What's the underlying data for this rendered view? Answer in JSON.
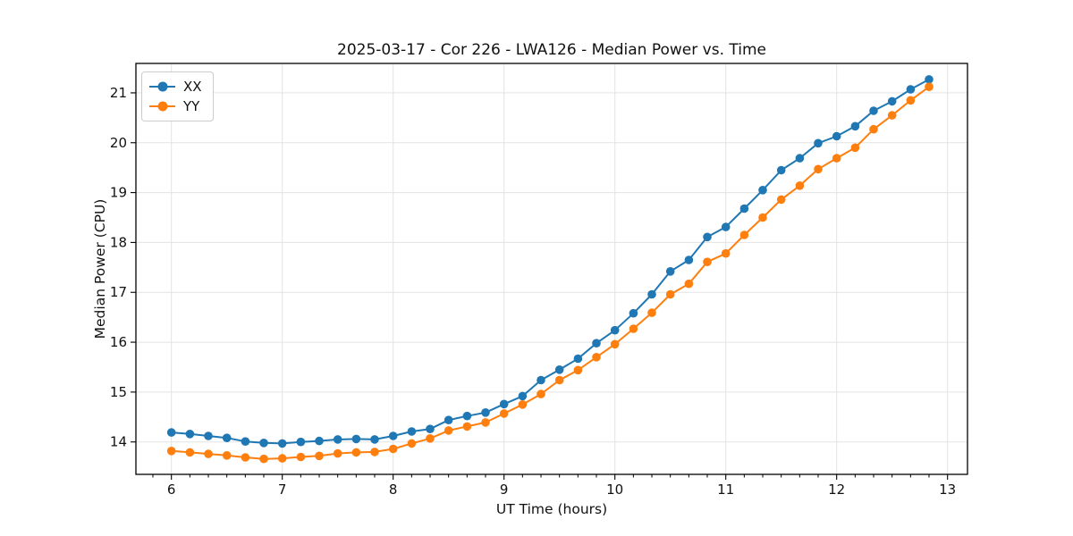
{
  "chart_data": {
    "type": "line",
    "title": "2025-03-17 - Cor 226 - LWA126 - Median Power vs. Time",
    "xlabel": "UT Time (hours)",
    "ylabel": "Median Power (CPU)",
    "xlim": [
      5.68,
      13.18
    ],
    "ylim": [
      13.35,
      21.59
    ],
    "xticks": [
      6,
      7,
      8,
      9,
      10,
      11,
      12,
      13
    ],
    "yticks": [
      14,
      15,
      16,
      17,
      18,
      19,
      20,
      21
    ],
    "x_minor_step_hours": 0.1667,
    "grid": true,
    "grid_color": "#e3e3e3",
    "legend_position": "upper-left",
    "x": [
      6.0,
      6.1667,
      6.3333,
      6.5,
      6.6667,
      6.8333,
      7.0,
      7.1667,
      7.3333,
      7.5,
      7.6667,
      7.8333,
      8.0,
      8.1667,
      8.3333,
      8.5,
      8.6667,
      8.8333,
      9.0,
      9.1667,
      9.3333,
      9.5,
      9.6667,
      9.8333,
      10.0,
      10.1667,
      10.3333,
      10.5,
      10.6667,
      10.8333,
      11.0,
      11.1667,
      11.3333,
      11.5,
      11.6667,
      11.8333,
      12.0,
      12.1667,
      12.3333,
      12.5,
      12.6667,
      12.8333
    ],
    "series": [
      {
        "name": "XX",
        "color": "#1f77b4",
        "marker": "circle",
        "values": [
          14.19,
          14.16,
          14.12,
          14.08,
          14.01,
          13.98,
          13.97,
          14.0,
          14.02,
          14.05,
          14.06,
          14.05,
          14.12,
          14.21,
          14.26,
          14.44,
          14.52,
          14.59,
          14.76,
          14.92,
          15.24,
          15.45,
          15.67,
          15.98,
          16.24,
          16.58,
          16.96,
          17.42,
          17.65,
          18.11,
          18.31,
          18.68,
          19.05,
          19.45,
          19.69,
          19.99,
          20.13,
          20.33,
          20.64,
          20.83,
          21.07,
          21.27
        ]
      },
      {
        "name": "YY",
        "color": "#ff7f0e",
        "marker": "circle",
        "values": [
          13.82,
          13.79,
          13.76,
          13.73,
          13.69,
          13.66,
          13.67,
          13.7,
          13.72,
          13.77,
          13.79,
          13.8,
          13.86,
          13.97,
          14.07,
          14.23,
          14.31,
          14.39,
          14.57,
          14.75,
          14.96,
          15.24,
          15.44,
          15.7,
          15.96,
          16.27,
          16.59,
          16.96,
          17.17,
          17.61,
          17.78,
          18.15,
          18.5,
          18.86,
          19.14,
          19.47,
          19.69,
          19.9,
          20.27,
          20.55,
          20.85,
          21.12
        ]
      }
    ]
  }
}
